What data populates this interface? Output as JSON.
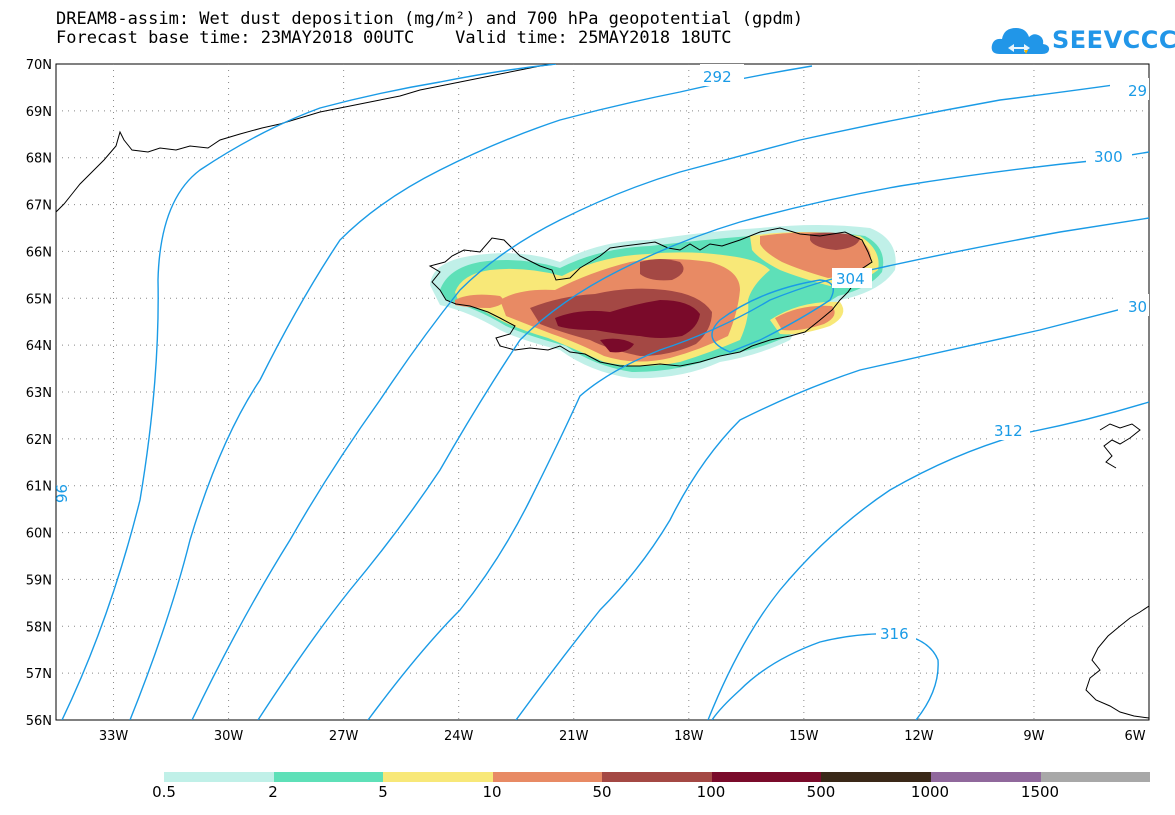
{
  "title": {
    "line1": "DREAM8-assim: Wet dust deposition (mg/m²) and 700 hPa geopotential (gpdm)",
    "line2": "Forecast base time: 23MAY2018 00UTC    Valid time: 25MAY2018 18UTC"
  },
  "logo": {
    "text": "SEEVCCC",
    "icon": "cloud-icon",
    "color": "#2196e8"
  },
  "map": {
    "latitudes": [
      "70N",
      "69N",
      "68N",
      "67N",
      "66N",
      "65N",
      "64N",
      "63N",
      "62N",
      "61N",
      "60N",
      "59N",
      "58N",
      "57N",
      "56N"
    ],
    "longitudes": [
      "33W",
      "30W",
      "27W",
      "24W",
      "21W",
      "18W",
      "15W",
      "12W",
      "9W",
      "6W"
    ],
    "contour_color": "#1a9be6",
    "contours": [
      {
        "label": "292"
      },
      {
        "label": "29"
      },
      {
        "label": "300"
      },
      {
        "label": "304"
      },
      {
        "label": "30"
      },
      {
        "label": "312"
      },
      {
        "label": "316"
      },
      {
        "label": "96"
      }
    ]
  },
  "legend": {
    "colors": [
      "#c0f0e8",
      "#5ee0b8",
      "#f8e878",
      "#e88a64",
      "#a44844",
      "#7a0a2a",
      "#3a2818",
      "#90689c",
      "#a8a8a8"
    ],
    "labels": [
      "0.5",
      "2",
      "5",
      "10",
      "50",
      "100",
      "500",
      "1000",
      "1500"
    ]
  }
}
